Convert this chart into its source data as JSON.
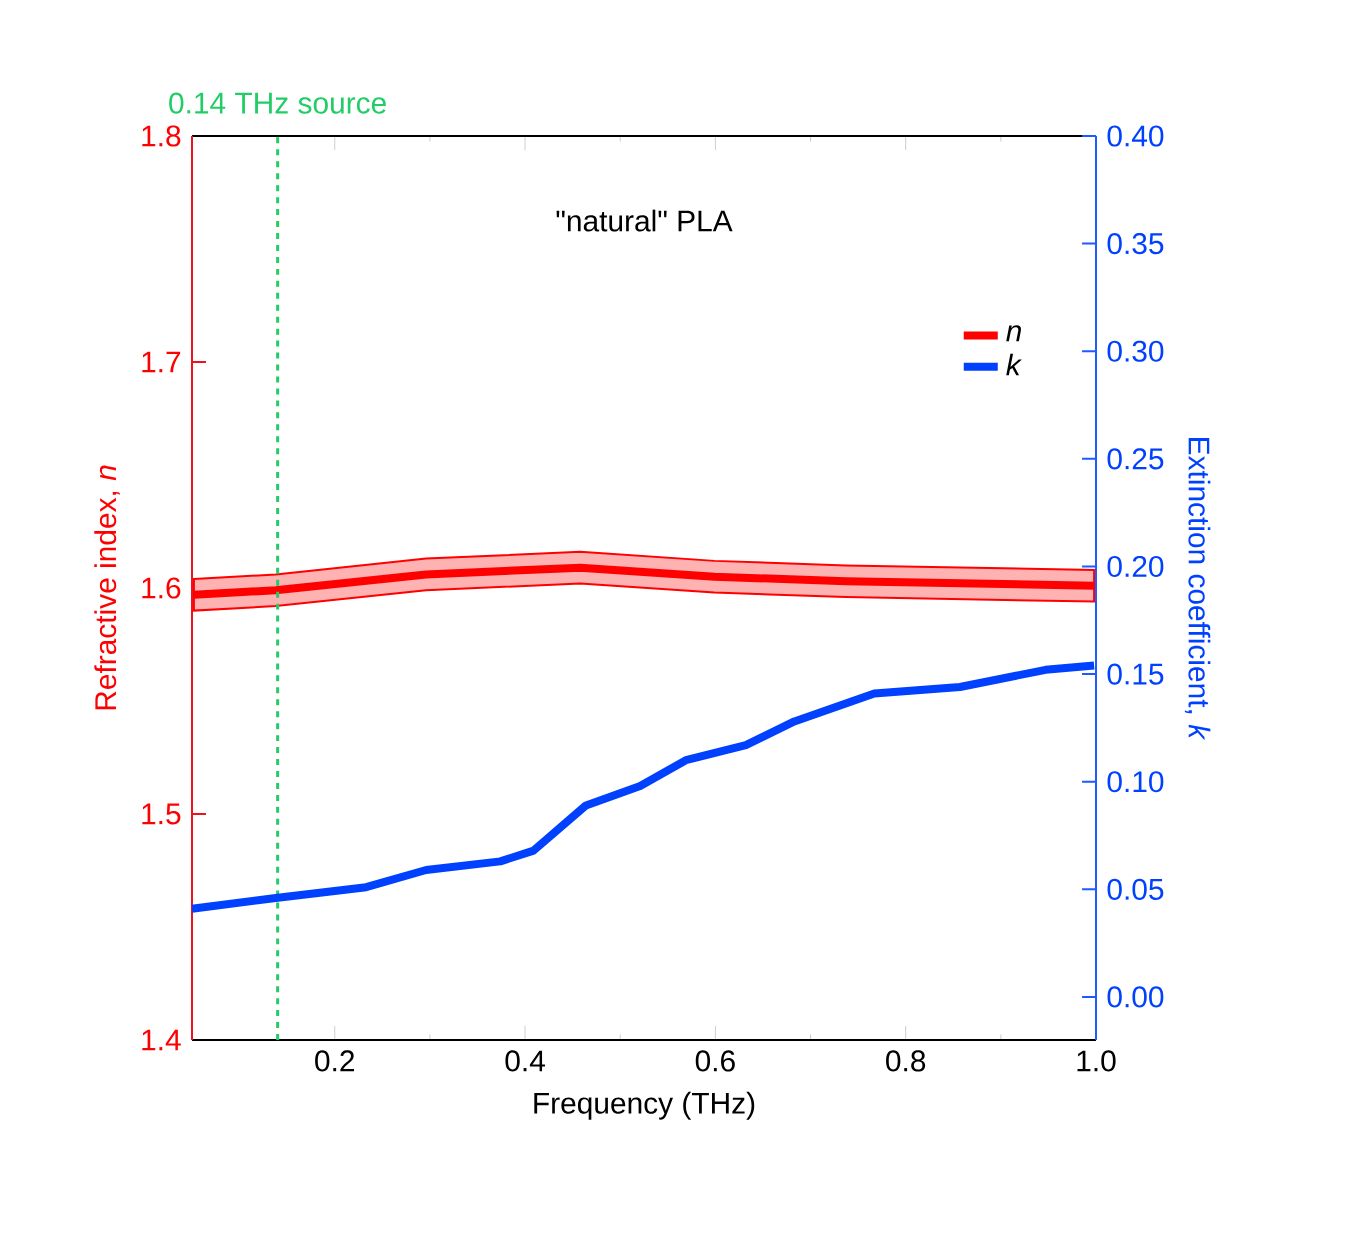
{
  "chart_data": {
    "type": "line",
    "title": "\"natural\" PLA",
    "xlabel": "Frequency (THz)",
    "ylabel": "Refractive index, *n*",
    "y2label": "Extinction coefficient, *k*",
    "xlim": [
      0.05,
      1.0
    ],
    "xticks": [
      0.2,
      0.4,
      0.6,
      0.8,
      {
        "value": 1.0,
        "label": "1.0"
      }
    ],
    "ylim": [
      1.4,
      1.8
    ],
    "yticks": [
      1.4,
      1.5,
      1.6,
      1.7,
      1.8
    ],
    "y2lim": [
      -0.02,
      0.4
    ],
    "y2ticks": [
      {
        "value": 0,
        "label": "0.00"
      },
      0.05,
      {
        "value": 0.1,
        "label": "0.10"
      },
      0.15,
      {
        "value": 0.2,
        "label": "0.20"
      },
      0.25,
      {
        "value": 0.3,
        "label": "0.30"
      },
      0.35,
      {
        "value": 0.4,
        "label": "0.40"
      }
    ],
    "series": [
      {
        "name": "*n*",
        "color": "#ff0000",
        "x": [
          0.052,
          0.138,
          0.296,
          0.458,
          0.599,
          0.737,
          0.998
        ],
        "values": [
          1.597,
          1.599,
          1.606,
          1.609,
          1.605,
          1.603,
          1.601
        ],
        "lower": [
          1.59,
          1.592,
          1.599,
          1.602,
          1.598,
          1.596,
          1.594
        ],
        "upper": [
          1.604,
          1.606,
          1.613,
          1.616,
          1.612,
          1.61,
          1.608
        ]
      },
      {
        "name": "*k*",
        "color": "#0040ff",
        "axis": "y2",
        "x": [
          0.05,
          0.138,
          0.233,
          0.296,
          0.374,
          0.409,
          0.464,
          0.521,
          0.569,
          0.632,
          0.683,
          0.767,
          0.857,
          0.947,
          0.998
        ],
        "values": [
          0.041,
          0.046,
          0.051,
          0.059,
          0.063,
          0.068,
          0.089,
          0.098,
          0.11,
          0.117,
          0.128,
          0.141,
          0.144,
          0.152,
          0.154
        ]
      }
    ],
    "ref_lines": [
      {
        "axis": "x",
        "value": 0.14,
        "label": "0.14 THz source",
        "color": "#22cc66",
        "line_style": "dashed"
      }
    ],
    "legend": "top right"
  }
}
